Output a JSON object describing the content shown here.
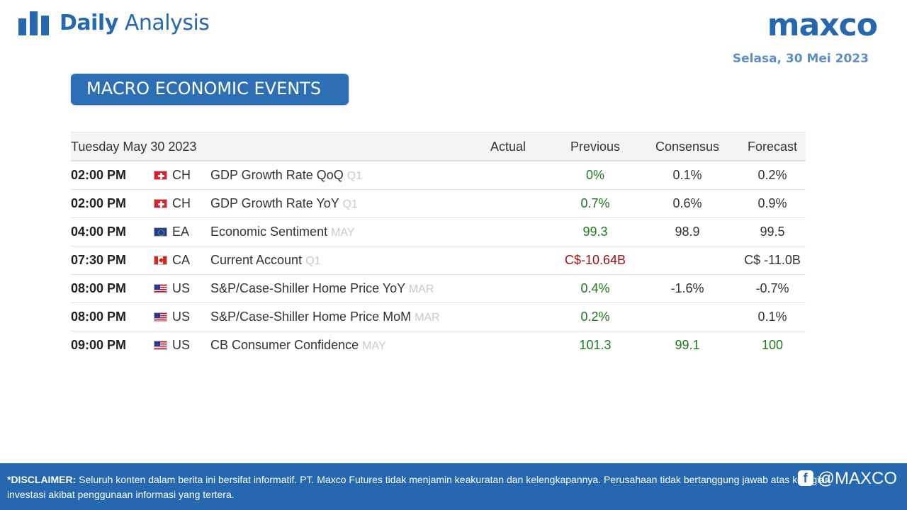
{
  "header": {
    "brand_bold": "Daily",
    "brand_light": "Analysis",
    "logo": "maxco",
    "date": "Selasa, 30 Mei 2023",
    "brand_color": "#2668b0"
  },
  "section": {
    "title": "MACRO ECONOMIC EVENTS"
  },
  "table": {
    "headers": {
      "date": "Tuesday May 30 2023",
      "actual": "Actual",
      "previous": "Previous",
      "consensus": "Consensus",
      "forecast": "Forecast"
    },
    "rows": [
      {
        "time": "02:00 PM",
        "flag": "switzerland-flag-icon",
        "country": "CH",
        "event": "GDP Growth Rate QoQ",
        "period": "Q1",
        "actual": "",
        "previous": "0%",
        "consensus": "0.1%",
        "forecast": "0.2%"
      },
      {
        "time": "02:00 PM",
        "flag": "switzerland-flag-icon",
        "country": "CH",
        "event": "GDP Growth Rate YoY",
        "period": "Q1",
        "actual": "",
        "previous": "0.7%",
        "consensus": "0.6%",
        "forecast": "0.9%"
      },
      {
        "time": "04:00 PM",
        "flag": "eu-flag-icon",
        "country": "EA",
        "event": "Economic Sentiment",
        "period": "MAY",
        "actual": "",
        "previous": "99.3",
        "consensus": "98.9",
        "forecast": "99.5"
      },
      {
        "time": "07:30 PM",
        "flag": "canada-flag-icon",
        "country": "CA",
        "event": "Current Account",
        "period": "Q1",
        "actual": "",
        "previous": "C$-10.64B",
        "consensus": "",
        "forecast": "C$ -11.0B"
      },
      {
        "time": "08:00 PM",
        "flag": "usa-flag-icon",
        "country": "US",
        "event": "S&P/Case-Shiller Home Price YoY",
        "period": "MAR",
        "actual": "",
        "previous": "0.4%",
        "consensus": "-1.6%",
        "forecast": "-0.7%"
      },
      {
        "time": "08:00 PM",
        "flag": "usa-flag-icon",
        "country": "US",
        "event": "S&P/Case-Shiller Home Price MoM",
        "period": "MAR",
        "actual": "",
        "previous": "0.2%",
        "consensus": "",
        "forecast": "0.1%"
      },
      {
        "time": "09:00 PM",
        "flag": "usa-flag-icon",
        "country": "US",
        "event": "CB Consumer Confidence",
        "period": "MAY",
        "actual": "",
        "previous": "101.3",
        "consensus": "99.1",
        "forecast": "100"
      }
    ]
  },
  "footer": {
    "label": "*DISCLAIMER:",
    "text": "Seluruh konten dalam berita ini bersifat informatif. PT. Maxco Futures tidak menjamin keakuratan dan kelengkapannya. Perusahaan tidak bertanggung jawab atas kerugian investasi akibat penggunaan informasi yang tertera.",
    "social_handle": "@MAXCO",
    "social_icon": "facebook-icon"
  }
}
